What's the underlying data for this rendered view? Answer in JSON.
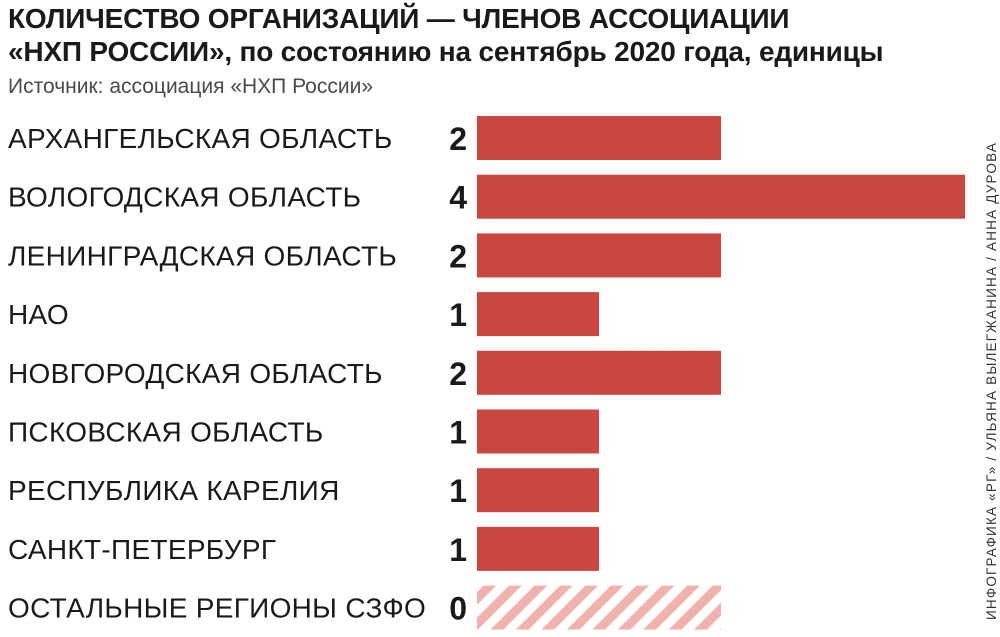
{
  "header": {
    "title_line1": "КОЛИЧЕСТВО ОРГАНИЗАЦИЙ — ЧЛЕНОВ АССОЦИАЦИИ",
    "title_line2": "«НХП РОССИИ», по состоянию на сентябрь 2020 года, единицы",
    "source": "Источник: ассоциация «НХП России»"
  },
  "credit": "ИНФОГРАФИКА «РГ» / УЛЬЯНА ВЫЛЕГЖАНИНА / АННА ДУРОВА",
  "colors": {
    "bar": "#c9473f",
    "zero_hatch": "#f1b2ad"
  },
  "chart_data": {
    "type": "bar",
    "orientation": "horizontal",
    "categories": [
      "АРХАНГЕЛЬСКАЯ ОБЛАСТЬ",
      "ВОЛОГОДСКАЯ ОБЛАСТЬ",
      "ЛЕНИНГРАДСКАЯ ОБЛАСТЬ",
      "НАО",
      "НОВГОРОДСКАЯ ОБЛАСТЬ",
      "ПСКОВСКАЯ ОБЛАСТЬ",
      "РЕСПУБЛИКА КАРЕЛИЯ",
      "САНКТ-ПЕТЕРБУРГ",
      "ОСТАЛЬНЫЕ РЕГИОНЫ СЗФО"
    ],
    "values": [
      2,
      4,
      2,
      1,
      2,
      1,
      1,
      1,
      0
    ],
    "xlim": [
      0,
      4
    ],
    "grid": false,
    "legend": "none",
    "zero_value_style": "hatched"
  }
}
